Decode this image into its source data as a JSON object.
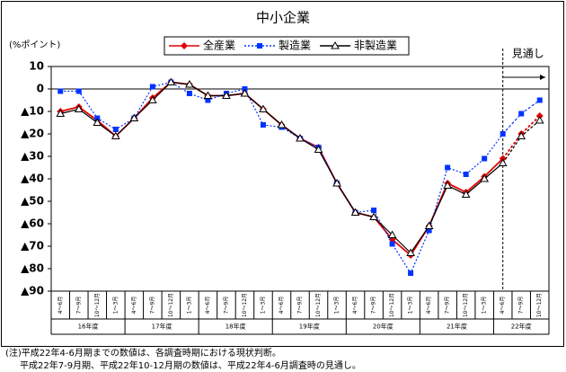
{
  "chart_data": {
    "type": "line",
    "title": "中小企業",
    "y_label": "(%ポイント)",
    "forecast_label": "見通し",
    "categories": [
      "4～6月",
      "7～9月",
      "10～12月",
      "1～3月",
      "4～6月",
      "7～9月",
      "10～12月",
      "1～3月",
      "4～6月",
      "7～9月",
      "10～12月",
      "1～3月",
      "4～6月",
      "7～9月",
      "10～12月",
      "1～3月",
      "4～6月",
      "7～9月",
      "10～12月",
      "1～3月",
      "4～6月",
      "7～9月",
      "10～12月",
      "1～3月",
      "4～6月",
      "7～9月",
      "10～12月"
    ],
    "groups": [
      "16年度",
      "17年度",
      "18年度",
      "19年度",
      "20年度",
      "21年度",
      "22年度"
    ],
    "series": [
      {
        "name": "全産業",
        "color": "#e00000",
        "marker": "diamond",
        "values": [
          -10,
          -8,
          -14,
          -21,
          -13,
          -4,
          3,
          2,
          -3,
          -3,
          -2,
          -9,
          -16,
          -22,
          -26,
          -42,
          -55,
          -57,
          -67,
          -74,
          -61,
          -42,
          -46,
          -39,
          -31,
          -20,
          -12
        ]
      },
      {
        "name": "製造業",
        "color": "#0033ff",
        "marker": "square",
        "values": [
          -1,
          -1,
          -13,
          -18,
          -13,
          1,
          3,
          -2,
          -5,
          -2,
          0,
          -16,
          -17,
          -22,
          -26,
          -42,
          -55,
          -54,
          -69,
          -82,
          -63,
          -35,
          -38,
          -31,
          -20,
          -11,
          -5
        ]
      },
      {
        "name": "非製造業",
        "color": "#000000",
        "marker": "triangle",
        "values": [
          -11,
          -9,
          -15,
          -21,
          -13,
          -5,
          3,
          2,
          -3,
          -3,
          -2,
          -9,
          -16,
          -22,
          -27,
          -42,
          -55,
          -57,
          -65,
          -73,
          -61,
          -43,
          -47,
          -40,
          -33,
          -21,
          -14
        ]
      }
    ],
    "ylim": [
      -90,
      10
    ],
    "yticks": [
      10,
      0,
      {
        "value": -10,
        "label": "▲10"
      },
      {
        "value": -20,
        "label": "▲20"
      },
      {
        "value": -30,
        "label": "▲30"
      },
      {
        "value": -40,
        "label": "▲40"
      },
      {
        "value": -50,
        "label": "▲50"
      },
      {
        "value": -60,
        "label": "▲60"
      },
      {
        "value": -70,
        "label": "▲70"
      },
      {
        "value": -80,
        "label": "▲80"
      },
      {
        "value": -90,
        "label": "▲90"
      }
    ],
    "notes": [
      "(注)平成22年4-6月期までの数値は、各調査時期における現状判断。",
      "平成22年7-9月期、平成22年10-12月期の数値は、平成22年4-6月調査時の見通し。"
    ]
  }
}
